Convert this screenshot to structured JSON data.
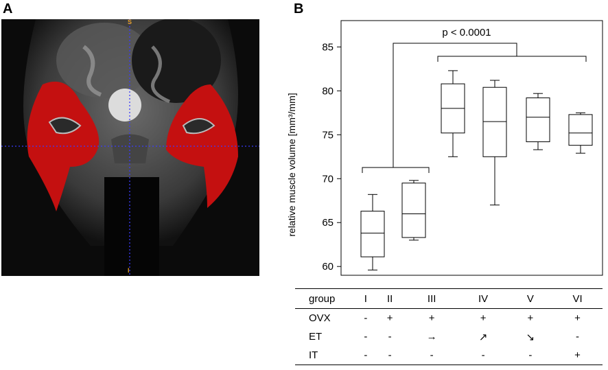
{
  "panels": {
    "a": "A",
    "b": "B"
  },
  "mri": {
    "marker_top": "S",
    "marker_bottom": "I"
  },
  "chart_data": {
    "type": "boxplot",
    "ylabel": "relative muscle volume  [mm³/mm]",
    "ylim": [
      59,
      88
    ],
    "yticks": [
      60,
      65,
      70,
      75,
      80,
      85
    ],
    "categories": [
      "I",
      "II",
      "III",
      "IV",
      "V",
      "VI"
    ],
    "boxes": [
      {
        "group": "I",
        "min": 59.6,
        "q1": 61.1,
        "median": 63.8,
        "q3": 66.3,
        "max": 68.2
      },
      {
        "group": "II",
        "min": 63.0,
        "q1": 63.3,
        "median": 66.0,
        "q3": 69.5,
        "max": 69.8
      },
      {
        "group": "III",
        "min": 72.5,
        "q1": 75.2,
        "median": 78.0,
        "q3": 80.8,
        "max": 82.3
      },
      {
        "group": "IV",
        "min": 67.0,
        "q1": 72.5,
        "median": 76.5,
        "q3": 80.4,
        "max": 81.2
      },
      {
        "group": "V",
        "min": 73.3,
        "q1": 74.2,
        "median": 77.0,
        "q3": 79.2,
        "max": 79.7
      },
      {
        "group": "VI",
        "min": 72.9,
        "q1": 73.8,
        "median": 75.2,
        "q3": 77.3,
        "max": 77.5
      }
    ],
    "annotation": "p < 0.0001",
    "bracket_left_groups": [
      "I",
      "II"
    ],
    "bracket_right_groups": [
      "III",
      "VI"
    ]
  },
  "table": {
    "header_label": "group",
    "groups": [
      "I",
      "II",
      "III",
      "IV",
      "V",
      "VI"
    ],
    "rows": [
      {
        "label": "OVX",
        "cells": [
          "-",
          "+",
          "+",
          "+",
          "+",
          "+"
        ]
      },
      {
        "label": "ET",
        "cells": [
          "-",
          "-",
          "→",
          "↗",
          "↘",
          "-"
        ]
      },
      {
        "label": "IT",
        "cells": [
          "-",
          "-",
          "-",
          "-",
          "-",
          "+"
        ]
      }
    ]
  }
}
